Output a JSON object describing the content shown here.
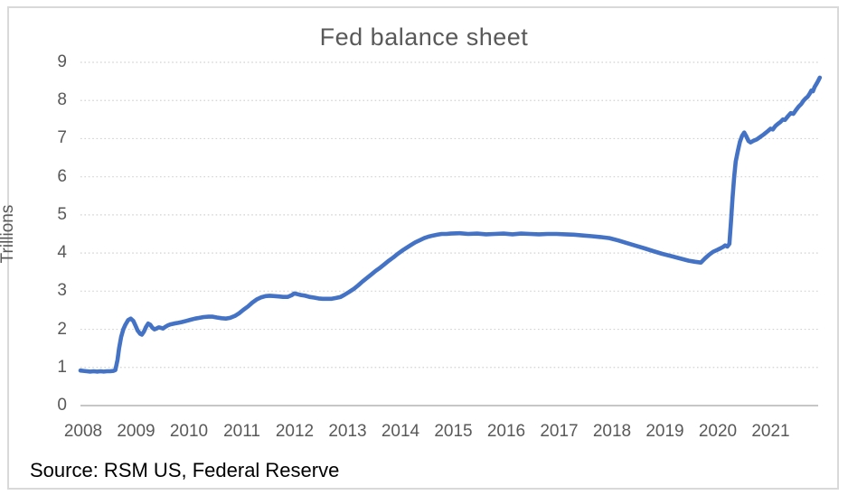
{
  "chart_data": {
    "type": "line",
    "title": "Fed balance sheet",
    "ylabel": "Trillions",
    "xlabel": "",
    "source_note": "Source: RSM US, Federal Reserve",
    "x_tick_labels": [
      "2008",
      "2009",
      "2010",
      "2011",
      "2012",
      "2013",
      "2014",
      "2015",
      "2016",
      "2017",
      "2018",
      "2019",
      "2020",
      "2021"
    ],
    "y_tick_values": [
      0,
      1,
      2,
      3,
      4,
      5,
      6,
      7,
      8,
      9
    ],
    "xlim": [
      2008,
      2022
    ],
    "ylim": [
      0,
      9
    ],
    "grid": "horizontal-dotted",
    "legend": "none",
    "series": [
      {
        "name": "Fed balance sheet (trillions USD)",
        "points": [
          [
            2008.0,
            0.92
          ],
          [
            2008.06,
            0.91
          ],
          [
            2008.12,
            0.9
          ],
          [
            2008.19,
            0.89
          ],
          [
            2008.25,
            0.9
          ],
          [
            2008.31,
            0.89
          ],
          [
            2008.38,
            0.9
          ],
          [
            2008.44,
            0.89
          ],
          [
            2008.5,
            0.9
          ],
          [
            2008.56,
            0.9
          ],
          [
            2008.62,
            0.91
          ],
          [
            2008.66,
            0.93
          ],
          [
            2008.7,
            1.2
          ],
          [
            2008.73,
            1.5
          ],
          [
            2008.77,
            1.8
          ],
          [
            2008.81,
            2.0
          ],
          [
            2008.85,
            2.12
          ],
          [
            2008.9,
            2.24
          ],
          [
            2008.95,
            2.28
          ],
          [
            2009.0,
            2.22
          ],
          [
            2009.04,
            2.1
          ],
          [
            2009.08,
            1.97
          ],
          [
            2009.13,
            1.88
          ],
          [
            2009.16,
            1.86
          ],
          [
            2009.2,
            1.94
          ],
          [
            2009.24,
            2.06
          ],
          [
            2009.28,
            2.15
          ],
          [
            2009.32,
            2.12
          ],
          [
            2009.36,
            2.04
          ],
          [
            2009.4,
            2.0
          ],
          [
            2009.44,
            2.02
          ],
          [
            2009.48,
            2.05
          ],
          [
            2009.52,
            2.04
          ],
          [
            2009.56,
            2.02
          ],
          [
            2009.6,
            2.06
          ],
          [
            2009.65,
            2.1
          ],
          [
            2009.7,
            2.13
          ],
          [
            2009.77,
            2.15
          ],
          [
            2009.85,
            2.17
          ],
          [
            2009.92,
            2.19
          ],
          [
            2010.0,
            2.22
          ],
          [
            2010.08,
            2.25
          ],
          [
            2010.17,
            2.28
          ],
          [
            2010.25,
            2.3
          ],
          [
            2010.33,
            2.32
          ],
          [
            2010.42,
            2.33
          ],
          [
            2010.5,
            2.33
          ],
          [
            2010.58,
            2.31
          ],
          [
            2010.67,
            2.29
          ],
          [
            2010.75,
            2.28
          ],
          [
            2010.83,
            2.3
          ],
          [
            2010.92,
            2.35
          ],
          [
            2011.0,
            2.42
          ],
          [
            2011.08,
            2.51
          ],
          [
            2011.17,
            2.6
          ],
          [
            2011.25,
            2.7
          ],
          [
            2011.33,
            2.78
          ],
          [
            2011.42,
            2.84
          ],
          [
            2011.5,
            2.87
          ],
          [
            2011.58,
            2.88
          ],
          [
            2011.67,
            2.87
          ],
          [
            2011.75,
            2.86
          ],
          [
            2011.83,
            2.85
          ],
          [
            2011.92,
            2.85
          ],
          [
            2012.0,
            2.9
          ],
          [
            2012.04,
            2.94
          ],
          [
            2012.08,
            2.93
          ],
          [
            2012.17,
            2.9
          ],
          [
            2012.25,
            2.88
          ],
          [
            2012.33,
            2.85
          ],
          [
            2012.42,
            2.83
          ],
          [
            2012.5,
            2.81
          ],
          [
            2012.58,
            2.8
          ],
          [
            2012.67,
            2.8
          ],
          [
            2012.75,
            2.8
          ],
          [
            2012.83,
            2.82
          ],
          [
            2012.92,
            2.85
          ],
          [
            2013.0,
            2.91
          ],
          [
            2013.08,
            2.98
          ],
          [
            2013.17,
            3.06
          ],
          [
            2013.25,
            3.15
          ],
          [
            2013.33,
            3.25
          ],
          [
            2013.42,
            3.35
          ],
          [
            2013.5,
            3.44
          ],
          [
            2013.58,
            3.53
          ],
          [
            2013.67,
            3.62
          ],
          [
            2013.75,
            3.71
          ],
          [
            2013.83,
            3.8
          ],
          [
            2013.92,
            3.89
          ],
          [
            2014.0,
            3.98
          ],
          [
            2014.08,
            4.06
          ],
          [
            2014.17,
            4.14
          ],
          [
            2014.25,
            4.21
          ],
          [
            2014.33,
            4.28
          ],
          [
            2014.42,
            4.34
          ],
          [
            2014.5,
            4.39
          ],
          [
            2014.58,
            4.43
          ],
          [
            2014.67,
            4.46
          ],
          [
            2014.75,
            4.48
          ],
          [
            2014.83,
            4.5
          ],
          [
            2014.92,
            4.5
          ],
          [
            2015.0,
            4.51
          ],
          [
            2015.17,
            4.52
          ],
          [
            2015.33,
            4.5
          ],
          [
            2015.5,
            4.51
          ],
          [
            2015.67,
            4.49
          ],
          [
            2015.83,
            4.5
          ],
          [
            2016.0,
            4.51
          ],
          [
            2016.17,
            4.49
          ],
          [
            2016.33,
            4.51
          ],
          [
            2016.5,
            4.5
          ],
          [
            2016.67,
            4.49
          ],
          [
            2016.83,
            4.5
          ],
          [
            2017.0,
            4.5
          ],
          [
            2017.17,
            4.49
          ],
          [
            2017.33,
            4.48
          ],
          [
            2017.5,
            4.46
          ],
          [
            2017.67,
            4.44
          ],
          [
            2017.83,
            4.42
          ],
          [
            2018.0,
            4.39
          ],
          [
            2018.17,
            4.33
          ],
          [
            2018.33,
            4.26
          ],
          [
            2018.5,
            4.19
          ],
          [
            2018.67,
            4.12
          ],
          [
            2018.83,
            4.05
          ],
          [
            2019.0,
            3.98
          ],
          [
            2019.17,
            3.92
          ],
          [
            2019.33,
            3.86
          ],
          [
            2019.5,
            3.8
          ],
          [
            2019.62,
            3.77
          ],
          [
            2019.73,
            3.75
          ],
          [
            2019.81,
            3.86
          ],
          [
            2019.89,
            3.96
          ],
          [
            2019.96,
            4.03
          ],
          [
            2020.04,
            4.08
          ],
          [
            2020.1,
            4.12
          ],
          [
            2020.15,
            4.16
          ],
          [
            2020.19,
            4.2
          ],
          [
            2020.23,
            4.17
          ],
          [
            2020.27,
            4.24
          ],
          [
            2020.3,
            4.8
          ],
          [
            2020.33,
            5.45
          ],
          [
            2020.36,
            6.0
          ],
          [
            2020.39,
            6.4
          ],
          [
            2020.43,
            6.68
          ],
          [
            2020.47,
            6.92
          ],
          [
            2020.51,
            7.07
          ],
          [
            2020.55,
            7.16
          ],
          [
            2020.59,
            7.06
          ],
          [
            2020.63,
            6.94
          ],
          [
            2020.67,
            6.9
          ],
          [
            2020.72,
            6.94
          ],
          [
            2020.79,
            6.98
          ],
          [
            2020.85,
            7.04
          ],
          [
            2020.92,
            7.11
          ],
          [
            2021.0,
            7.2
          ],
          [
            2021.05,
            7.26
          ],
          [
            2021.09,
            7.24
          ],
          [
            2021.14,
            7.33
          ],
          [
            2021.19,
            7.39
          ],
          [
            2021.23,
            7.43
          ],
          [
            2021.28,
            7.5
          ],
          [
            2021.32,
            7.49
          ],
          [
            2021.38,
            7.59
          ],
          [
            2021.43,
            7.67
          ],
          [
            2021.48,
            7.65
          ],
          [
            2021.53,
            7.75
          ],
          [
            2021.58,
            7.84
          ],
          [
            2021.63,
            7.91
          ],
          [
            2021.67,
            7.99
          ],
          [
            2021.71,
            8.05
          ],
          [
            2021.75,
            8.1
          ],
          [
            2021.79,
            8.18
          ],
          [
            2021.82,
            8.26
          ],
          [
            2021.85,
            8.24
          ],
          [
            2021.88,
            8.35
          ],
          [
            2021.92,
            8.44
          ],
          [
            2021.95,
            8.52
          ],
          [
            2021.98,
            8.6
          ]
        ]
      }
    ],
    "colors": {
      "line": "#4472C4",
      "title_text": "#595959",
      "tick_text": "#595959",
      "gridline": "#D2D2D2",
      "axis_line": "#B3B3B3",
      "border": "#D9D9D9",
      "background": "#FFFFFF",
      "source_text": "#000000"
    }
  }
}
